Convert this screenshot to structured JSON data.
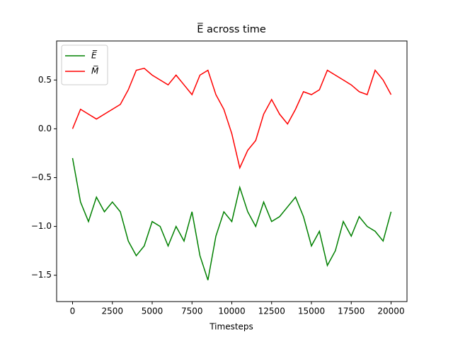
{
  "chart_data": {
    "type": "line",
    "title": "E̅ across time",
    "xlabel": "Timesteps",
    "x": [
      0,
      500,
      1000,
      1500,
      2000,
      2500,
      3000,
      3500,
      4000,
      4500,
      5000,
      5500,
      6000,
      6500,
      7000,
      7500,
      8000,
      8500,
      9000,
      9500,
      10000,
      10500,
      11000,
      11500,
      12000,
      12500,
      13000,
      13500,
      14000,
      14500,
      15000,
      15500,
      16000,
      16500,
      17000,
      17500,
      18000,
      18500,
      19000,
      19500,
      20000
    ],
    "series": [
      {
        "name": "E̅",
        "color": "#008000",
        "values": [
          -0.3,
          -0.75,
          -0.95,
          -0.7,
          -0.85,
          -0.75,
          -0.85,
          -1.15,
          -1.3,
          -1.2,
          -0.95,
          -1.0,
          -1.2,
          -1.0,
          -1.15,
          -0.85,
          -1.3,
          -1.55,
          -1.1,
          -0.85,
          -0.95,
          -0.6,
          -0.85,
          -1.0,
          -0.75,
          -0.95,
          -0.9,
          -0.8,
          -0.7,
          -0.9,
          -1.2,
          -1.05,
          -1.4,
          -1.25,
          -0.95,
          -1.1,
          -0.9,
          -1.0,
          -1.05,
          -1.15,
          -0.85
        ]
      },
      {
        "name": "M̅",
        "color": "#ff0000",
        "values": [
          0.0,
          0.2,
          0.15,
          0.1,
          0.15,
          0.2,
          0.25,
          0.4,
          0.6,
          0.62,
          0.55,
          0.5,
          0.45,
          0.55,
          0.45,
          0.35,
          0.55,
          0.6,
          0.35,
          0.2,
          -0.05,
          -0.4,
          -0.22,
          -0.12,
          0.15,
          0.3,
          0.15,
          0.05,
          0.2,
          0.38,
          0.35,
          0.4,
          0.6,
          0.55,
          0.5,
          0.45,
          0.38,
          0.35,
          0.6,
          0.5,
          0.35
        ]
      }
    ],
    "xlim": [
      -1000,
      21000
    ],
    "xticks": [
      0,
      2500,
      5000,
      7500,
      10000,
      12500,
      15000,
      17500,
      20000
    ],
    "ylim": [
      -1.77,
      0.9
    ],
    "yticks": [
      {
        "value": -1.5,
        "label": "−1.5"
      },
      {
        "value": -1.0,
        "label": "−1.0"
      },
      {
        "value": -0.5,
        "label": "−0.5"
      },
      {
        "value": 0.0,
        "label": "0.0"
      },
      {
        "value": 0.5,
        "label": "0.5"
      }
    ],
    "legend": "upper left"
  }
}
